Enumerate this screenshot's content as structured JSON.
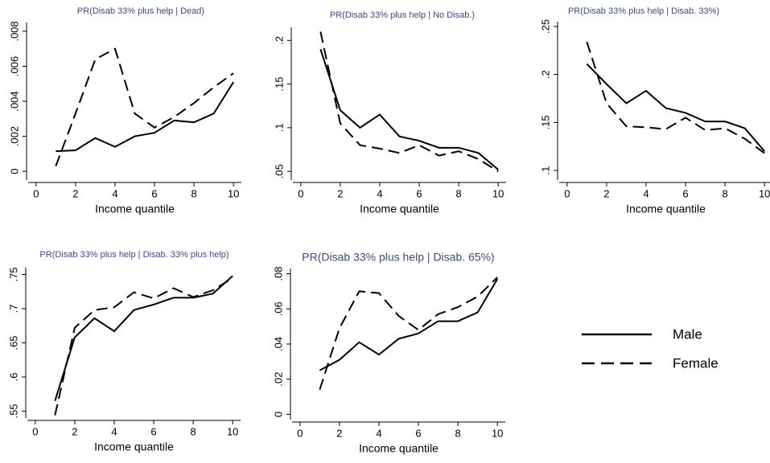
{
  "chart_data": [
    {
      "type": "line",
      "title": "PR(Disab 33% plus help | Dead)",
      "xlabel": "Income quantile",
      "x": [
        1,
        2,
        3,
        4,
        5,
        6,
        7,
        8,
        9,
        10
      ],
      "xlim": [
        -0.4,
        10.4
      ],
      "xticks": [
        0,
        2,
        4,
        6,
        8,
        10
      ],
      "ylim": [
        -0.0005,
        0.0085
      ],
      "yticks": [
        0,
        {
          "value": 0.002,
          "label": ".002"
        },
        {
          "value": 0.004,
          "label": ".004"
        },
        {
          "value": 0.006,
          "label": ".006"
        },
        {
          "value": 0.008,
          "label": ".008"
        }
      ],
      "series": [
        {
          "name": "Male",
          "color": "#000000",
          "line_style": "solid",
          "values": [
            0.00115,
            0.0012,
            0.0019,
            0.0014,
            0.002,
            0.0022,
            0.0029,
            0.0028,
            0.0033,
            0.0051
          ]
        },
        {
          "name": "Female",
          "color": "#000000",
          "line_style": "dashed",
          "values": [
            0.0003,
            0.0033,
            0.0064,
            0.007,
            0.0033,
            0.0025,
            0.0031,
            0.0039,
            0.0048,
            0.0056
          ]
        }
      ]
    },
    {
      "type": "line",
      "title": "PR(Disab 33% plus help | No Disab.)",
      "xlabel": "Income quantile",
      "x": [
        1,
        2,
        3,
        4,
        5,
        6,
        7,
        8,
        9,
        10
      ],
      "xlim": [
        -0.4,
        10.4
      ],
      "xticks": [
        0,
        2,
        4,
        6,
        8,
        10
      ],
      "ylim": [
        0.04,
        0.215
      ],
      "yticks": [
        {
          "value": 0.05,
          "label": ".05"
        },
        {
          "value": 0.1,
          "label": ".1"
        },
        {
          "value": 0.15,
          "label": ".15"
        },
        {
          "value": 0.2,
          "label": ".2"
        }
      ],
      "series": [
        {
          "name": "Male",
          "color": "#000000",
          "line_style": "solid",
          "values": [
            0.19,
            0.12,
            0.1,
            0.115,
            0.09,
            0.085,
            0.077,
            0.077,
            0.071,
            0.052
          ]
        },
        {
          "name": "Female",
          "color": "#000000",
          "line_style": "dashed",
          "values": [
            0.21,
            0.105,
            0.08,
            0.076,
            0.071,
            0.08,
            0.068,
            0.073,
            0.064,
            0.05
          ]
        }
      ]
    },
    {
      "type": "line",
      "title": "PR(Disab 33% plus help | Disab. 33%)",
      "xlabel": "Income quantile",
      "x": [
        1,
        2,
        3,
        4,
        5,
        6,
        7,
        8,
        9,
        10
      ],
      "xlim": [
        -0.4,
        10.4
      ],
      "xticks": [
        0,
        2,
        4,
        6,
        8,
        10
      ],
      "ylim": [
        0.09,
        0.255
      ],
      "yticks": [
        {
          "value": 0.1,
          "label": ".1"
        },
        {
          "value": 0.15,
          "label": ".15"
        },
        {
          "value": 0.2,
          "label": ".2"
        },
        {
          "value": 0.25,
          "label": ".25"
        }
      ],
      "series": [
        {
          "name": "Male",
          "color": "#000000",
          "line_style": "solid",
          "values": [
            0.211,
            0.19,
            0.17,
            0.183,
            0.165,
            0.16,
            0.151,
            0.151,
            0.144,
            0.12
          ]
        },
        {
          "name": "Female",
          "color": "#000000",
          "line_style": "dashed",
          "values": [
            0.234,
            0.17,
            0.146,
            0.145,
            0.143,
            0.155,
            0.142,
            0.144,
            0.133,
            0.118
          ]
        }
      ]
    },
    {
      "type": "line",
      "title": "PR(Disab 33% plus help | Disab. 33% plus help)",
      "xlabel": "Income quantile",
      "x": [
        1,
        2,
        3,
        4,
        5,
        6,
        7,
        8,
        9,
        10
      ],
      "xlim": [
        -0.4,
        10.4
      ],
      "xticks": [
        0,
        2,
        4,
        6,
        8,
        10
      ],
      "ylim": [
        0.54,
        0.76
      ],
      "yticks": [
        {
          "value": 0.55,
          "label": ".55"
        },
        {
          "value": 0.6,
          "label": ".6"
        },
        {
          "value": 0.65,
          "label": ".65"
        },
        {
          "value": 0.7,
          "label": ".7"
        },
        {
          "value": 0.75,
          "label": ".75"
        }
      ],
      "series": [
        {
          "name": "Male",
          "color": "#000000",
          "line_style": "solid",
          "values": [
            0.565,
            0.658,
            0.686,
            0.667,
            0.698,
            0.706,
            0.716,
            0.716,
            0.722,
            0.748
          ]
        },
        {
          "name": "Female",
          "color": "#000000",
          "line_style": "dashed",
          "values": [
            0.544,
            0.672,
            0.698,
            0.702,
            0.724,
            0.715,
            0.73,
            0.717,
            0.727,
            0.745
          ]
        }
      ]
    },
    {
      "type": "line",
      "title": "PR(Disab 33% plus help | Disab. 65%)",
      "xlabel": "Income quantile",
      "x": [
        1,
        2,
        3,
        4,
        5,
        6,
        7,
        8,
        9,
        10
      ],
      "xlim": [
        -0.4,
        10.4
      ],
      "xticks": [
        0,
        2,
        4,
        6,
        8,
        10
      ],
      "ylim": [
        -0.003,
        0.083
      ],
      "yticks": [
        0,
        {
          "value": 0.02,
          "label": ".02"
        },
        {
          "value": 0.04,
          "label": ".04"
        },
        {
          "value": 0.06,
          "label": ".06"
        },
        {
          "value": 0.08,
          "label": ".08"
        }
      ],
      "series": [
        {
          "name": "Male",
          "color": "#000000",
          "line_style": "solid",
          "values": [
            0.025,
            0.031,
            0.041,
            0.034,
            0.043,
            0.046,
            0.053,
            0.053,
            0.058,
            0.077
          ]
        },
        {
          "name": "Female",
          "color": "#000000",
          "line_style": "dashed",
          "values": [
            0.014,
            0.049,
            0.07,
            0.069,
            0.056,
            0.048,
            0.057,
            0.061,
            0.067,
            0.078
          ]
        }
      ]
    }
  ]
}
